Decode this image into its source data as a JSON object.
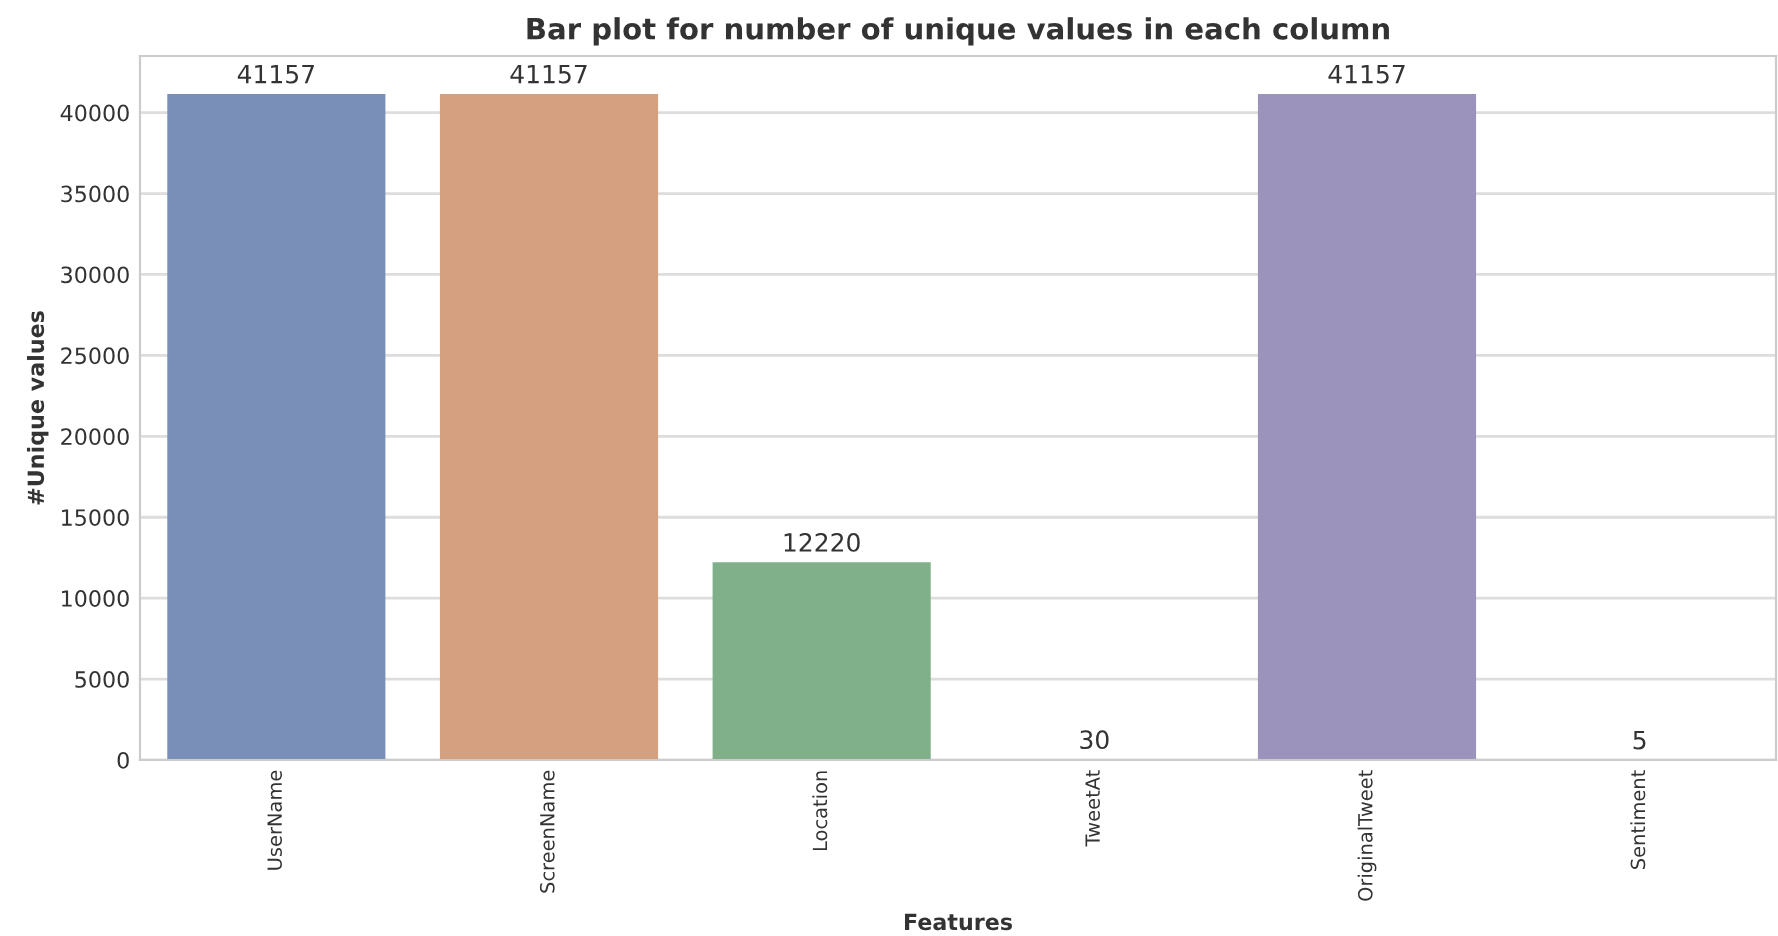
{
  "chart_data": {
    "type": "bar",
    "title": "Bar plot for number of unique values in each column",
    "xlabel": "Features",
    "ylabel": "#Unique values",
    "categories": [
      "UserName",
      "ScreenName",
      "Location",
      "TweetAt",
      "OriginalTweet",
      "Sentiment"
    ],
    "values": [
      41157,
      41157,
      12220,
      30,
      41157,
      5
    ],
    "colors": [
      "#7a8fb8",
      "#d5a07f",
      "#7fb08a",
      "#d27e80",
      "#9b93bb",
      "#a89283"
    ],
    "ylim": [
      0,
      43500
    ],
    "yticks": [
      0,
      5000,
      10000,
      15000,
      20000,
      25000,
      30000,
      35000,
      40000
    ],
    "grid": "y",
    "data_labels": true
  }
}
